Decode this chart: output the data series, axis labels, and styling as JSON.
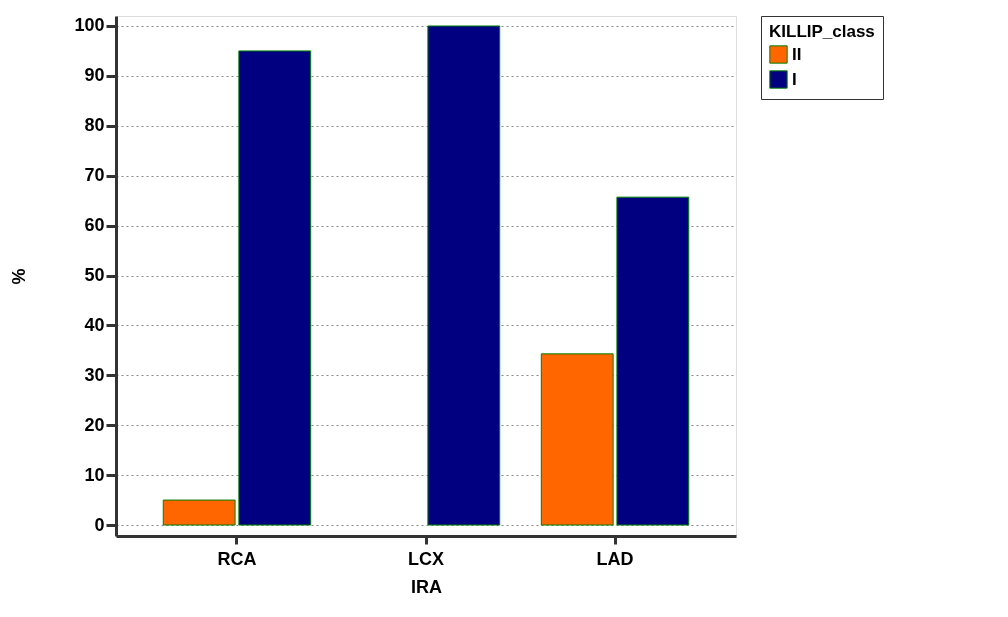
{
  "chart_data": {
    "type": "bar",
    "xlabel": "IRA",
    "ylabel": "%",
    "legend_title": "KILLIP_class",
    "categories": [
      "RCA",
      "LCX",
      "LAD"
    ],
    "series": [
      {
        "name": "II",
        "color": "#ff6600",
        "values": [
          5.0,
          null,
          34.3
        ]
      },
      {
        "name": "I",
        "color": "#000080",
        "values": [
          95.0,
          100,
          65.7
        ]
      }
    ],
    "ylim": [
      -2.2,
      102
    ],
    "yticks": [
      0,
      10,
      20,
      30,
      40,
      50,
      60,
      70,
      80,
      90,
      100
    ],
    "grid": "y",
    "legend": "right"
  }
}
